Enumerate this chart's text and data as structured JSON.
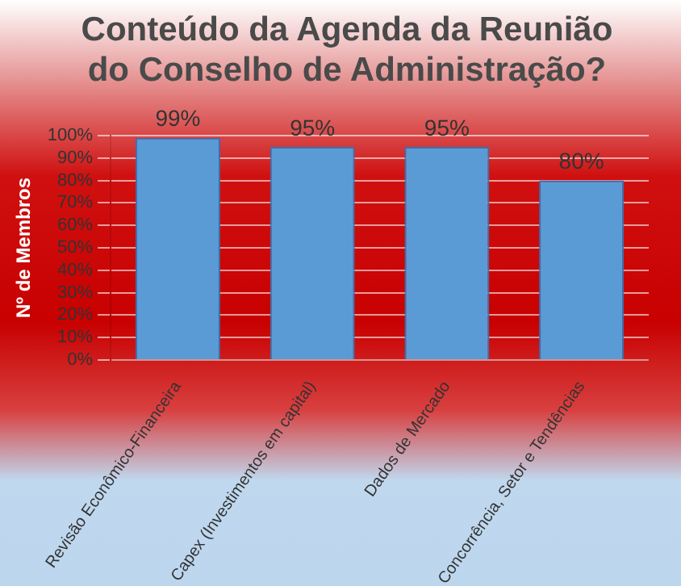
{
  "chart_data": {
    "type": "bar",
    "title": "Conteúdo da Agenda da Reunião do Conselho de Administração?",
    "ylabel": "Nº de Membros",
    "categories": [
      "Revisão Econômico-Financeira",
      "Capex (Investimentos em capital)",
      "Dados de Mercado",
      "Concorrência, Setor e Tendências"
    ],
    "values": [
      99,
      95,
      95,
      80
    ],
    "color": "#5b9bd5",
    "ylim": [
      0,
      100
    ],
    "yticks": [
      {
        "value": 0,
        "label": "0%"
      },
      {
        "value": 10,
        "label": "10%"
      },
      {
        "value": 20,
        "label": "20%"
      },
      {
        "value": 30,
        "label": "30%"
      },
      {
        "value": 40,
        "label": "40%"
      },
      {
        "value": 50,
        "label": "50%"
      },
      {
        "value": 60,
        "label": "60%"
      },
      {
        "value": 70,
        "label": "70%"
      },
      {
        "value": 80,
        "label": "80%"
      },
      {
        "value": 90,
        "label": "90%"
      },
      {
        "value": 100,
        "label": "100%"
      }
    ],
    "value_labels": [
      "99%",
      "95%",
      "95%",
      "80%"
    ],
    "grid": "y",
    "legend": false
  }
}
